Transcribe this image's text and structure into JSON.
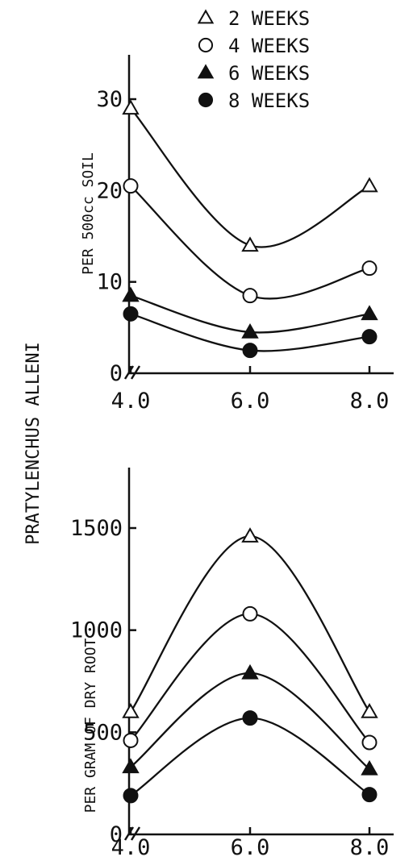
{
  "shared_ylabel": "PRATYLENCHUS ALLENI",
  "legend": [
    {
      "label": "2 WEEKS",
      "marker": "triangle-open"
    },
    {
      "label": "4 WEEKS",
      "marker": "circle-open"
    },
    {
      "label": "6 WEEKS",
      "marker": "triangle-filled"
    },
    {
      "label": "8 WEEKS",
      "marker": "circle-filled"
    }
  ],
  "colors": {
    "ink": "#111111",
    "background": "#ffffff"
  },
  "chart_data": [
    {
      "type": "line",
      "title": "",
      "xlabel": "",
      "ylabel": "PER 500cc SOIL",
      "xlim": [
        4.0,
        8.0
      ],
      "ylim": [
        0,
        30
      ],
      "x": [
        4.0,
        6.0,
        8.0
      ],
      "xticks": [
        {
          "value": 4.0,
          "label": "4.0"
        },
        {
          "value": 6.0,
          "label": "6.0"
        },
        {
          "value": 8.0,
          "label": "8.0"
        }
      ],
      "yticks": [
        {
          "value": 0,
          "label": "0"
        },
        {
          "value": 10,
          "label": "10"
        },
        {
          "value": 20,
          "label": "20"
        },
        {
          "value": 30,
          "label": "30"
        }
      ],
      "grid": false,
      "axis_break": true,
      "series": [
        {
          "name": "2 WEEKS",
          "marker": "triangle-open",
          "values": [
            29,
            14,
            20.5
          ]
        },
        {
          "name": "4 WEEKS",
          "marker": "circle-open",
          "values": [
            20.5,
            8.5,
            11.5
          ]
        },
        {
          "name": "6 WEEKS",
          "marker": "triangle-filled",
          "values": [
            8.5,
            4.5,
            6.5
          ]
        },
        {
          "name": "8 WEEKS",
          "marker": "circle-filled",
          "values": [
            6.5,
            2.5,
            4
          ]
        }
      ]
    },
    {
      "type": "line",
      "title": "",
      "xlabel": "",
      "ylabel": "PER GRAM OF DRY ROOT",
      "xlim": [
        4.0,
        8.0
      ],
      "ylim": [
        0,
        1500
      ],
      "x": [
        4.0,
        6.0,
        8.0
      ],
      "xticks": [
        {
          "value": 4.0,
          "label": "4.0"
        },
        {
          "value": 6.0,
          "label": "6.0"
        },
        {
          "value": 8.0,
          "label": "8.0"
        }
      ],
      "yticks": [
        {
          "value": 0,
          "label": "0"
        },
        {
          "value": 500,
          "label": "500"
        },
        {
          "value": 1000,
          "label": "1000"
        },
        {
          "value": 1500,
          "label": "1500"
        }
      ],
      "grid": false,
      "axis_break": true,
      "series": [
        {
          "name": "2 WEEKS",
          "marker": "triangle-open",
          "values": [
            600,
            1460,
            600
          ]
        },
        {
          "name": "4 WEEKS",
          "marker": "circle-open",
          "values": [
            460,
            1080,
            450
          ]
        },
        {
          "name": "6 WEEKS",
          "marker": "triangle-filled",
          "values": [
            330,
            790,
            320
          ]
        },
        {
          "name": "8 WEEKS",
          "marker": "circle-filled",
          "values": [
            190,
            570,
            195
          ]
        }
      ]
    }
  ]
}
